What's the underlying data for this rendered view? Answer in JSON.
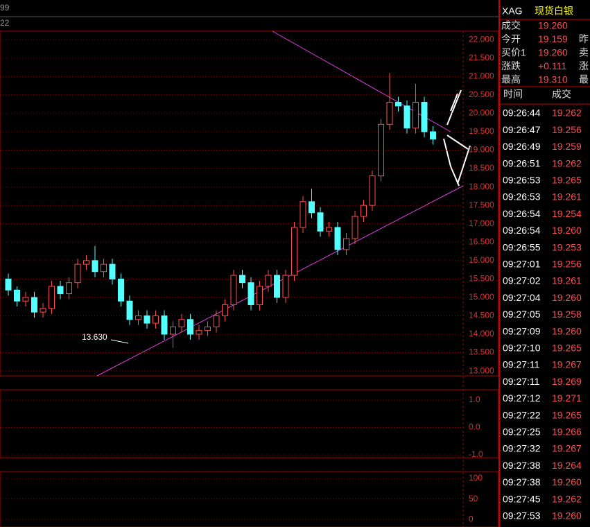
{
  "header": {
    "left_top": "99",
    "left_sub": "22"
  },
  "chart_data": {
    "type": "candlestick",
    "annotation": "13.630",
    "up_color": "#ff4d4d",
    "down_color": "#54ffff",
    "ylim": [
      12.87,
      22.23
    ],
    "yticks": [
      {
        "value": 22,
        "label": "22.000"
      },
      {
        "value": 21.5,
        "label": "21.500"
      },
      {
        "value": 21,
        "label": "21.000"
      },
      {
        "value": 20.5,
        "label": "20.500"
      },
      {
        "value": 20,
        "label": "20.000"
      },
      {
        "value": 19.5,
        "label": "19.500"
      },
      {
        "value": 19,
        "label": "19.000"
      },
      {
        "value": 18.5,
        "label": "18.500"
      },
      {
        "value": 18,
        "label": "18.000"
      },
      {
        "value": 17.5,
        "label": "17.500"
      },
      {
        "value": 17,
        "label": "17.000"
      },
      {
        "value": 16.5,
        "label": "16.500"
      },
      {
        "value": 16,
        "label": "16.000"
      },
      {
        "value": 15.5,
        "label": "15.500"
      },
      {
        "value": 15,
        "label": "15.000"
      },
      {
        "value": 14.5,
        "label": "14.500"
      },
      {
        "value": 14,
        "label": "14.000"
      },
      {
        "value": 13.5,
        "label": "13.500"
      },
      {
        "value": 13,
        "label": "13.000"
      }
    ],
    "open": [
      15.5,
      15.2,
      14.9,
      15.0,
      14.6,
      14.7,
      15.3,
      15.1,
      15.4,
      15.9,
      16.0,
      15.7,
      15.9,
      15.5,
      14.9,
      14.4,
      14.5,
      14.3,
      14.5,
      14.0,
      14.2,
      14.4,
      14.0,
      14.1,
      14.2,
      14.5,
      14.8,
      15.6,
      15.4,
      14.8,
      15.3,
      15.6,
      15.0,
      15.6,
      16.9,
      17.6,
      17.3,
      16.8,
      16.9,
      16.3,
      16.6,
      17.2,
      17.5,
      18.3,
      19.7,
      20.3,
      20.2,
      19.6,
      20.3,
      19.5
    ],
    "high": [
      15.65,
      15.3,
      15.15,
      15.15,
      14.85,
      15.45,
      15.45,
      15.55,
      16.05,
      16.15,
      16.4,
      16.05,
      16.05,
      15.65,
      15.05,
      14.65,
      14.65,
      14.65,
      14.65,
      14.35,
      14.55,
      14.55,
      14.25,
      14.35,
      14.65,
      14.95,
      15.75,
      15.75,
      15.55,
      15.45,
      15.75,
      15.75,
      15.75,
      17.05,
      17.75,
      17.95,
      17.45,
      17.05,
      17.05,
      16.75,
      17.35,
      17.65,
      18.45,
      19.85,
      21.1,
      20.45,
      20.35,
      20.8,
      20.45,
      19.65
    ],
    "low": [
      15.05,
      14.75,
      14.75,
      14.45,
      14.45,
      14.55,
      14.95,
      14.95,
      15.25,
      15.75,
      15.55,
      15.55,
      15.35,
      14.75,
      14.25,
      14.25,
      14.15,
      14.15,
      13.85,
      13.63,
      14.05,
      13.85,
      13.85,
      13.95,
      14.05,
      14.35,
      14.65,
      15.25,
      14.65,
      14.65,
      15.15,
      14.85,
      14.85,
      15.45,
      16.75,
      17.15,
      16.65,
      16.65,
      16.15,
      16.15,
      16.45,
      17.05,
      17.35,
      18.15,
      19.55,
      20.05,
      19.45,
      19.45,
      19.35,
      19.15
    ],
    "close": [
      15.2,
      14.9,
      15.0,
      14.6,
      14.7,
      15.3,
      15.1,
      15.4,
      15.9,
      16.0,
      15.7,
      15.9,
      15.5,
      14.9,
      14.4,
      14.5,
      14.3,
      14.5,
      14.0,
      14.2,
      14.4,
      14.0,
      14.1,
      14.2,
      14.5,
      14.8,
      15.6,
      15.4,
      14.8,
      15.3,
      15.6,
      15.0,
      15.6,
      16.9,
      17.6,
      17.3,
      16.8,
      16.9,
      16.3,
      16.6,
      17.2,
      17.5,
      18.3,
      19.7,
      20.3,
      20.2,
      19.6,
      20.3,
      19.5,
      19.3
    ]
  },
  "indicator_panels": [
    {
      "ylim": [
        -1.1,
        1.38
      ],
      "yticks": [
        {
          "value": 1,
          "label": "1.0"
        },
        {
          "value": 0,
          "label": "0.0"
        },
        {
          "value": -1,
          "label": "-1.0"
        }
      ]
    },
    {
      "ylim": [
        -15,
        117
      ],
      "yticks": [
        100,
        50,
        0
      ]
    }
  ],
  "quote_panel": {
    "symbol": "XAG",
    "name": "现货白银",
    "rows": [
      {
        "label": "成交",
        "value": "19.260",
        "tail": ""
      },
      {
        "label": "今开",
        "value": "19.159",
        "tail": "昨"
      },
      {
        "label": "买价1",
        "value": "19.260",
        "tail": "卖"
      },
      {
        "label": "涨跌",
        "value": "+0.111",
        "tail": "涨"
      },
      {
        "label": "最高",
        "value": "19.310",
        "tail": "最"
      }
    ],
    "trade_header": [
      "时间",
      "成交"
    ],
    "trades": [
      [
        "09:26:44",
        "19.262"
      ],
      [
        "09:26:47",
        "19.256"
      ],
      [
        "09:26:49",
        "19.259"
      ],
      [
        "09:26:51",
        "19.262"
      ],
      [
        "09:26:53",
        "19.265"
      ],
      [
        "09:26:53",
        "19.261"
      ],
      [
        "09:26:54",
        "19.254"
      ],
      [
        "09:26:54",
        "19.260"
      ],
      [
        "09:26:55",
        "19.253"
      ],
      [
        "09:27:01",
        "19.256"
      ],
      [
        "09:27:02",
        "19.261"
      ],
      [
        "09:27:04",
        "19.260"
      ],
      [
        "09:27:05",
        "19.258"
      ],
      [
        "09:27:09",
        "19.260"
      ],
      [
        "09:27:10",
        "19.265"
      ],
      [
        "09:27:11",
        "19.267"
      ],
      [
        "09:27:11",
        "19.269"
      ],
      [
        "09:27:12",
        "19.271"
      ],
      [
        "09:27:22",
        "19.265"
      ],
      [
        "09:27:25",
        "19.266"
      ],
      [
        "09:27:32",
        "19.267"
      ],
      [
        "09:27:38",
        "19.264"
      ],
      [
        "09:27:38",
        "19.260"
      ],
      [
        "09:27:45",
        "19.262"
      ],
      [
        "09:27:53",
        "19.260"
      ]
    ]
  }
}
